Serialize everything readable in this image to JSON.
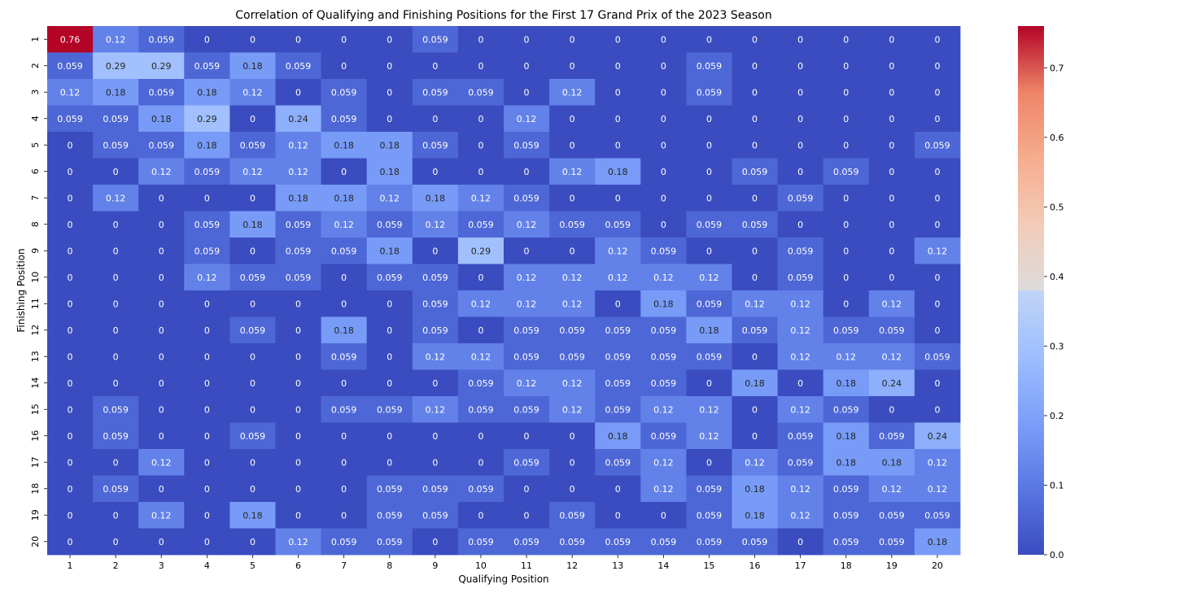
{
  "chart_data": {
    "type": "heatmap",
    "title": "Correlation of Qualifying and Finishing Positions for the First 17 Grand Prix of the 2023 Season",
    "xlabel": "Qualifying Position",
    "ylabel": "Finishing Position",
    "x_categories": [
      "1",
      "2",
      "3",
      "4",
      "5",
      "6",
      "7",
      "8",
      "9",
      "10",
      "11",
      "12",
      "13",
      "14",
      "15",
      "16",
      "17",
      "18",
      "19",
      "20"
    ],
    "y_categories": [
      "1",
      "2",
      "3",
      "4",
      "5",
      "6",
      "7",
      "8",
      "9",
      "10",
      "11",
      "12",
      "13",
      "14",
      "15",
      "16",
      "17",
      "18",
      "19",
      "20"
    ],
    "values": [
      [
        0.76,
        0.12,
        0.059,
        0,
        0,
        0,
        0,
        0,
        0.059,
        0,
        0,
        0,
        0,
        0,
        0,
        0,
        0,
        0,
        0,
        0
      ],
      [
        0.059,
        0.29,
        0.29,
        0.059,
        0.18,
        0.059,
        0,
        0,
        0,
        0,
        0,
        0,
        0,
        0,
        0.059,
        0,
        0,
        0,
        0,
        0
      ],
      [
        0.12,
        0.18,
        0.059,
        0.18,
        0.12,
        0,
        0.059,
        0,
        0.059,
        0.059,
        0,
        0.12,
        0,
        0,
        0.059,
        0,
        0,
        0,
        0,
        0
      ],
      [
        0.059,
        0.059,
        0.18,
        0.29,
        0,
        0.24,
        0.059,
        0,
        0,
        0,
        0.12,
        0,
        0,
        0,
        0,
        0,
        0,
        0,
        0,
        0
      ],
      [
        0,
        0.059,
        0.059,
        0.18,
        0.059,
        0.12,
        0.18,
        0.18,
        0.059,
        0,
        0.059,
        0,
        0,
        0,
        0,
        0,
        0,
        0,
        0,
        0.059
      ],
      [
        0,
        0,
        0.12,
        0.059,
        0.12,
        0.12,
        0,
        0.18,
        0,
        0,
        0,
        0.12,
        0.18,
        0,
        0,
        0.059,
        0,
        0.059,
        0,
        0
      ],
      [
        0,
        0.12,
        0,
        0,
        0,
        0.18,
        0.18,
        0.12,
        0.18,
        0.12,
        0.059,
        0,
        0,
        0,
        0,
        0,
        0.059,
        0,
        0,
        0
      ],
      [
        0,
        0,
        0,
        0.059,
        0.18,
        0.059,
        0.12,
        0.059,
        0.12,
        0.059,
        0.12,
        0.059,
        0.059,
        0,
        0.059,
        0.059,
        0,
        0,
        0,
        0
      ],
      [
        0,
        0,
        0,
        0.059,
        0,
        0.059,
        0.059,
        0.18,
        0,
        0.29,
        0,
        0,
        0.12,
        0.059,
        0,
        0,
        0.059,
        0,
        0,
        0.12
      ],
      [
        0,
        0,
        0,
        0.12,
        0.059,
        0.059,
        0,
        0.059,
        0.059,
        0,
        0.12,
        0.12,
        0.12,
        0.12,
        0.12,
        0,
        0.059,
        0,
        0,
        0
      ],
      [
        0,
        0,
        0,
        0,
        0,
        0,
        0,
        0,
        0.059,
        0.12,
        0.12,
        0.12,
        0,
        0.18,
        0.059,
        0.12,
        0.12,
        0,
        0.12,
        0
      ],
      [
        0,
        0,
        0,
        0,
        0.059,
        0,
        0.18,
        0,
        0.059,
        0,
        0.059,
        0.059,
        0.059,
        0.059,
        0.18,
        0.059,
        0.12,
        0.059,
        0.059,
        0
      ],
      [
        0,
        0,
        0,
        0,
        0,
        0,
        0.059,
        0,
        0.12,
        0.12,
        0.059,
        0.059,
        0.059,
        0.059,
        0.059,
        0,
        0.12,
        0.12,
        0.12,
        0.059
      ],
      [
        0,
        0,
        0,
        0,
        0,
        0,
        0,
        0,
        0,
        0.059,
        0.12,
        0.12,
        0.059,
        0.059,
        0,
        0.18,
        0,
        0.18,
        0.24,
        0
      ],
      [
        0,
        0.059,
        0,
        0,
        0,
        0,
        0.059,
        0.059,
        0.12,
        0.059,
        0.059,
        0.12,
        0.059,
        0.12,
        0.12,
        0,
        0.12,
        0.059,
        0,
        0
      ],
      [
        0,
        0.059,
        0,
        0,
        0.059,
        0,
        0,
        0,
        0,
        0,
        0,
        0,
        0.18,
        0.059,
        0.12,
        0,
        0.059,
        0.18,
        0.059,
        0.24
      ],
      [
        0,
        0,
        0.12,
        0,
        0,
        0,
        0,
        0,
        0,
        0,
        0.059,
        0,
        0.059,
        0.12,
        0,
        0.12,
        0.059,
        0.18,
        0.18,
        0.12
      ],
      [
        0,
        0.059,
        0,
        0,
        0,
        0,
        0,
        0.059,
        0.059,
        0.059,
        0,
        0,
        0,
        0.12,
        0.059,
        0.18,
        0.12,
        0.059,
        0.12,
        0.12
      ],
      [
        0,
        0,
        0.12,
        0,
        0.18,
        0,
        0,
        0.059,
        0.059,
        0,
        0,
        0.059,
        0,
        0,
        0.059,
        0.18,
        0.12,
        0.059,
        0.059,
        0.059
      ],
      [
        0,
        0,
        0,
        0,
        0,
        0.12,
        0.059,
        0.059,
        0,
        0.059,
        0.059,
        0.059,
        0.059,
        0.059,
        0.059,
        0.059,
        0,
        0.059,
        0.059,
        0.18
      ]
    ],
    "colorbar": {
      "colormap": "coolwarm",
      "vmin": 0.0,
      "vmax": 0.76,
      "ticks": [
        "0.0",
        "0.1",
        "0.2",
        "0.3",
        "0.4",
        "0.5",
        "0.6",
        "0.7"
      ]
    }
  }
}
